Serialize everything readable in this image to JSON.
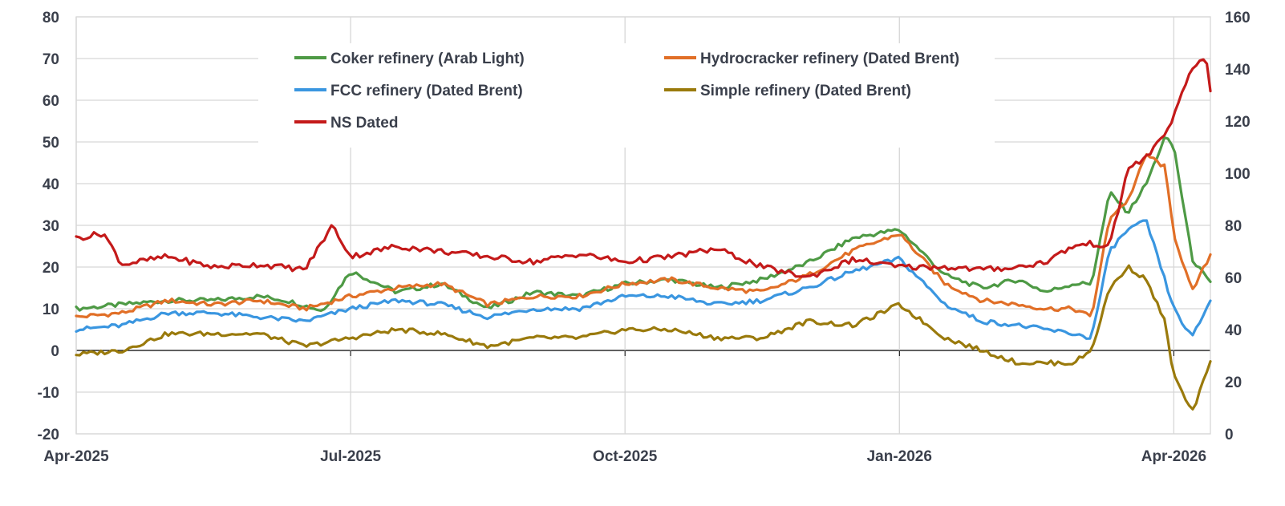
{
  "chart_data": {
    "type": "line",
    "title": "",
    "xlabel": "",
    "ylabel": "",
    "y2label": "",
    "x_ticks": [
      "Apr-2025",
      "Jul-2025",
      "Oct-2025",
      "Jan-2026",
      "Apr-2026"
    ],
    "ylim": [
      -20,
      80
    ],
    "y_ticks": [
      "80",
      "70",
      "60",
      "50",
      "40",
      "30",
      "20",
      "10",
      "0",
      "-10",
      "-20"
    ],
    "y2lim": [
      0,
      160
    ],
    "y2_ticks": [
      "160",
      "140",
      "120",
      "100",
      "80",
      "60",
      "40",
      "20",
      "0"
    ],
    "grid": true,
    "legend_position": "top",
    "x_units": "months since Apr-2025",
    "series": [
      {
        "name": "Coker refinery (Arab Light)",
        "color": "#4e9a45",
        "axis": "left",
        "x": [
          0,
          0.5,
          1,
          1.5,
          2,
          2.3,
          2.7,
          3,
          3.5,
          4,
          4.5,
          5,
          5.5,
          6,
          6.5,
          7,
          7.5,
          8,
          8.5,
          9,
          9.5,
          9.9,
          10.3,
          10.6,
          10.9,
          11.1,
          11.3,
          11.5,
          11.7,
          11.9,
          12.0,
          12.2,
          12.4
        ],
        "values": [
          10,
          11,
          12,
          12,
          13,
          12,
          9.5,
          19,
          14,
          16,
          10,
          14,
          13,
          16,
          17,
          15,
          17,
          21,
          27,
          29,
          18,
          15,
          17,
          14,
          16,
          16,
          38,
          33,
          40,
          51,
          49,
          22,
          16
        ]
      },
      {
        "name": "Hydrocracker refinery (Dated Brent)",
        "color": "#e16f27",
        "axis": "left",
        "x": [
          0,
          0.5,
          1,
          1.5,
          2,
          2.5,
          3,
          3.5,
          4,
          4.5,
          5,
          5.5,
          6,
          6.5,
          7,
          7.5,
          8,
          8.5,
          9,
          9.5,
          9.9,
          10.3,
          10.6,
          10.9,
          11.1,
          11.3,
          11.5,
          11.7,
          11.9,
          12.0,
          12.2,
          12.4
        ],
        "values": [
          8,
          9,
          12,
          11,
          12,
          10,
          13,
          15,
          16,
          11,
          13,
          13,
          16,
          17,
          15,
          14,
          18,
          24,
          28,
          16,
          12,
          11,
          10,
          10,
          8,
          32,
          36,
          47,
          44,
          28,
          14,
          23
        ]
      },
      {
        "name": "FCC refinery (Dated Brent)",
        "color": "#3a96e0",
        "axis": "left",
        "x": [
          0,
          0.5,
          1,
          1.5,
          2,
          2.5,
          3,
          3.5,
          4,
          4.5,
          5,
          5.5,
          6,
          6.5,
          7,
          7.5,
          8,
          8.5,
          9,
          9.5,
          9.9,
          10.3,
          10.6,
          10.9,
          11.1,
          11.3,
          11.5,
          11.7,
          11.9,
          12.0,
          12.2,
          12.4
        ],
        "values": [
          5,
          6,
          9,
          9,
          8,
          7,
          10,
          12,
          11,
          8,
          10,
          10,
          13,
          13,
          11,
          12,
          15,
          19,
          22,
          11,
          7,
          6,
          5,
          4,
          3,
          24,
          29,
          31,
          17,
          10,
          3,
          12
        ]
      },
      {
        "name": "Simple refinery (Dated Brent)",
        "color": "#9a7a0c",
        "axis": "left",
        "x": [
          0,
          0.5,
          1,
          1.5,
          2,
          2.5,
          3,
          3.5,
          4,
          4.5,
          5,
          5.5,
          6,
          6.5,
          7,
          7.5,
          8,
          8.5,
          9,
          9.5,
          9.9,
          10.3,
          10.6,
          10.9,
          11.1,
          11.3,
          11.5,
          11.7,
          11.9,
          12.0,
          12.2,
          12.4
        ],
        "values": [
          -1,
          0,
          4,
          4,
          4,
          1,
          3,
          5,
          4,
          1,
          3,
          3,
          5,
          5,
          3,
          3,
          7,
          6,
          11,
          3,
          0,
          -3,
          -3,
          -3,
          0,
          15,
          20,
          17,
          7,
          -6,
          -15,
          -3
        ]
      },
      {
        "name": "NS Dated",
        "color": "#c41a1a",
        "axis": "right",
        "x": [
          0,
          0.3,
          0.5,
          1,
          1.5,
          2,
          2.5,
          2.8,
          3,
          3.5,
          4,
          4.5,
          5,
          5.5,
          6,
          6.5,
          7,
          7.5,
          8,
          8.5,
          9,
          9.5,
          9.9,
          10.3,
          10.6,
          10.9,
          11.1,
          11.3,
          11.5,
          11.7,
          11.9,
          12.0,
          12.2,
          12.35,
          12.4
        ],
        "values": [
          75,
          77,
          65,
          68,
          64,
          65,
          63,
          80,
          68,
          72,
          70,
          68,
          66,
          69,
          66,
          68,
          71,
          64,
          60,
          67,
          64,
          64,
          63,
          64,
          66,
          72,
          73,
          72,
          102,
          106,
          115,
          122,
          140,
          145,
          132
        ]
      }
    ]
  }
}
